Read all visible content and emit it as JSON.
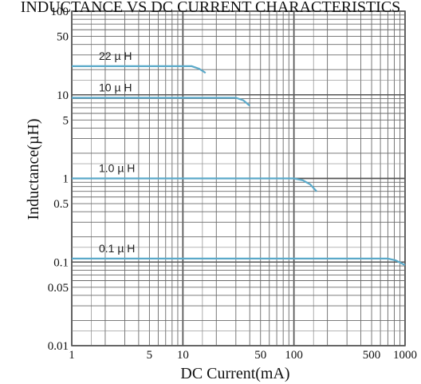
{
  "chart_data": {
    "type": "line",
    "title": "INDUCTANCE VS DC CURRENT CHARACTERISTICS",
    "xlabel": "DC Current(mA)",
    "ylabel": "Inductance(µH)",
    "x_scale": "log",
    "y_scale": "log",
    "xlim": [
      1,
      1000
    ],
    "ylim": [
      0.01,
      100
    ],
    "grid": true,
    "line_color": "#5aa9c9",
    "x_ticks": [
      {
        "value": 1,
        "label": "1"
      },
      {
        "value": 5,
        "label": "5"
      },
      {
        "value": 10,
        "label": "10"
      },
      {
        "value": 50,
        "label": "50"
      },
      {
        "value": 100,
        "label": "100"
      },
      {
        "value": 500,
        "label": "500"
      },
      {
        "value": 1000,
        "label": "1000"
      }
    ],
    "y_ticks": [
      {
        "value": 0.01,
        "label": "0.01"
      },
      {
        "value": 0.05,
        "label": "0.05"
      },
      {
        "value": 0.1,
        "label": "0.1"
      },
      {
        "value": 0.5,
        "label": "0.5"
      },
      {
        "value": 1,
        "label": "1"
      },
      {
        "value": 5,
        "label": "5"
      },
      {
        "value": 10,
        "label": "10"
      },
      {
        "value": 50,
        "label": "50"
      },
      {
        "value": 100,
        "label": "100"
      }
    ],
    "series": [
      {
        "name": "22 µ H",
        "points": [
          [
            1,
            22
          ],
          [
            12,
            22
          ],
          [
            14,
            20.5
          ],
          [
            16,
            18.3
          ]
        ]
      },
      {
        "name": "10 µ H",
        "points": [
          [
            1,
            9.2
          ],
          [
            30,
            9.2
          ],
          [
            35,
            8.6
          ],
          [
            40,
            7.4
          ]
        ]
      },
      {
        "name": "1.0 µ H",
        "points": [
          [
            1,
            1.0
          ],
          [
            100,
            1.0
          ],
          [
            120,
            0.95
          ],
          [
            140,
            0.85
          ],
          [
            160,
            0.7
          ]
        ]
      },
      {
        "name": "0.1 µ H",
        "points": [
          [
            1,
            0.11
          ],
          [
            700,
            0.11
          ],
          [
            820,
            0.105
          ],
          [
            1000,
            0.092
          ]
        ]
      }
    ]
  }
}
